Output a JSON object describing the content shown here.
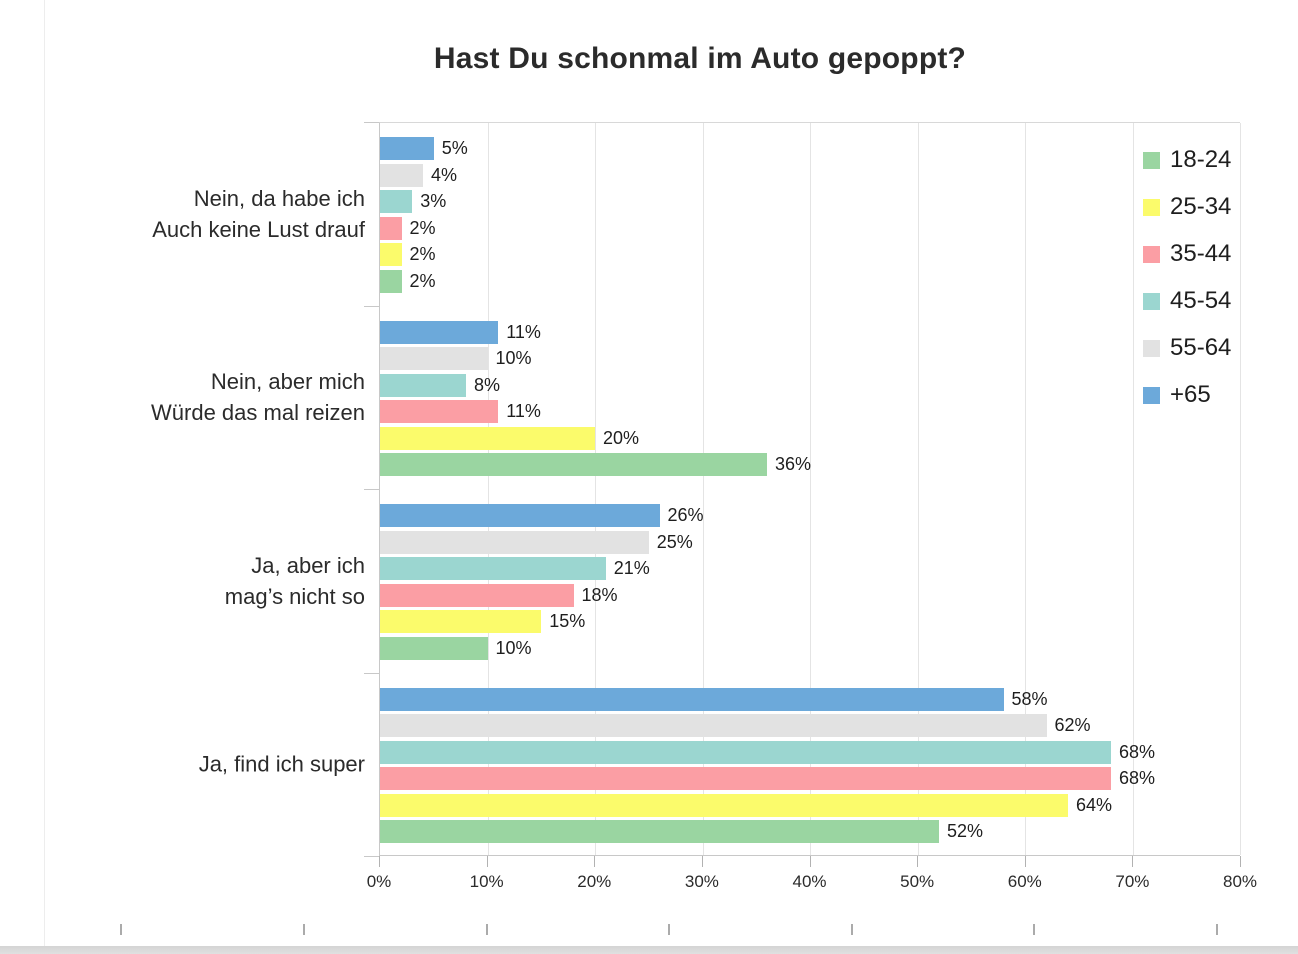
{
  "page": {
    "background_color": "#ffffff",
    "bottom_bar_color": "#d9d9d9"
  },
  "chart_data": {
    "type": "bar",
    "orientation": "horizontal",
    "title": "Hast Du schonmal im Auto gepoppt?",
    "categories": [
      "Nein, da habe ich\nAuch keine Lust drauf",
      "Nein, aber mich\nWürde das mal reizen",
      "Ja, aber ich\nmag’s nicht so",
      "Ja, find ich super"
    ],
    "series": [
      {
        "name": "18-24",
        "color": "#9ad5a1",
        "values": [
          2,
          36,
          10,
          52
        ]
      },
      {
        "name": "25-34",
        "color": "#fbfb6b",
        "values": [
          2,
          20,
          15,
          64
        ]
      },
      {
        "name": "35-44",
        "color": "#fb9ea4",
        "values": [
          2,
          11,
          18,
          68
        ]
      },
      {
        "name": "45-54",
        "color": "#9bd6d0",
        "values": [
          3,
          8,
          21,
          68
        ]
      },
      {
        "name": "55-64",
        "color": "#e2e2e2",
        "values": [
          4,
          10,
          25,
          62
        ]
      },
      {
        "name": "+65",
        "color": "#6ca9da",
        "values": [
          5,
          11,
          26,
          58
        ]
      }
    ],
    "value_suffix": "%",
    "xlim": [
      0,
      80
    ],
    "xticks": [
      "0%",
      "10%",
      "20%",
      "30%",
      "40%",
      "50%",
      "60%",
      "70%",
      "80%"
    ],
    "grid": true,
    "legend_position": "top-right"
  }
}
